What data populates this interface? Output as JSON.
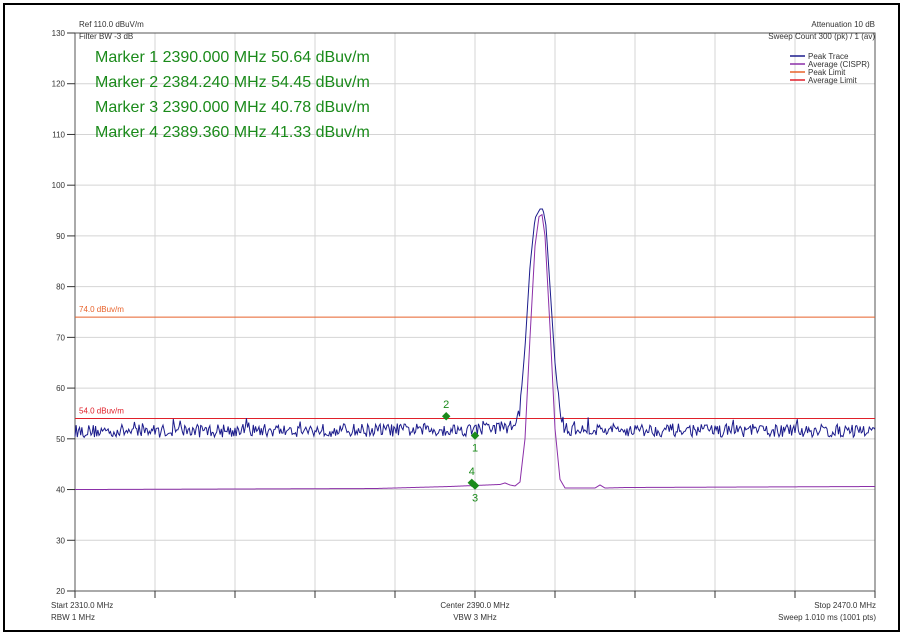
{
  "header": {
    "ref_level": "Ref 110.0 dBuV/m",
    "filter_bw": "Filter BW -3 dB",
    "attenuation": "Attenuation 10 dB",
    "sweep_count": "Sweep Count 300 (pk) / 1 (av)"
  },
  "footer": {
    "start": "Start 2310.0 MHz",
    "rbw": "RBW 1 MHz",
    "center": "Center 2390.0 MHz",
    "vbw": "VBW 3 MHz",
    "stop": "Stop 2470.0 MHz",
    "sweep": "Sweep 1.010 ms (1001 pts)"
  },
  "marker_readouts": [
    "Marker 1 2390.000 MHz 50.64 dBuv/m",
    "Marker 2 2384.240 MHz 54.45 dBuv/m",
    "Marker 3 2390.000 MHz 40.78 dBuv/m",
    "Marker 4 2389.360 MHz 41.33 dBuv/m"
  ],
  "colors": {
    "peak_trace": "#1c1c8c",
    "average_trace": "#8b2fa8",
    "peak_limit": "#e8622a",
    "average_limit": "#e0202a",
    "marker": "#1a8a1a",
    "grid": "#d4d4d4",
    "axis": "#333333"
  },
  "chart_data": {
    "type": "line",
    "x_unit": "MHz",
    "y_unit": "dBuV/m",
    "xlim": [
      2310,
      2470
    ],
    "ylim": [
      20,
      130
    ],
    "y_ticks": [
      20,
      30,
      40,
      50,
      60,
      70,
      80,
      90,
      100,
      110,
      120,
      130
    ],
    "x_grid_divisions": 10,
    "grid": true,
    "legend_position": "top-right",
    "legend": [
      "Peak Trace",
      "Average (CISPR)",
      "Peak Limit",
      "Average Limit"
    ],
    "limit_lines": [
      {
        "name": "Peak Limit",
        "value": 74.0,
        "label": "74.0 dBuv/m"
      },
      {
        "name": "Average Limit",
        "value": 54.0,
        "label": "54.0 dBuv/m"
      }
    ],
    "series": [
      {
        "name": "Peak Trace",
        "noise_floor": 51.5,
        "noise_amplitude": 1.3,
        "x": [
          2310,
          2390,
          2398,
          2399,
          2400,
          2401,
          2402,
          2403,
          2403.6,
          2404.2,
          2405,
          2406,
          2407,
          2408,
          2470
        ],
        "y": [
          51.5,
          51.8,
          52.5,
          56,
          68,
          84,
          93.5,
          95.3,
          95.3,
          92,
          80,
          65,
          55,
          51.8,
          51.5
        ]
      },
      {
        "name": "Average (CISPR)",
        "x": [
          2310,
          2370,
          2385,
          2390,
          2395,
          2396,
          2397,
          2398,
          2399,
          2400,
          2401,
          2402,
          2402.8,
          2403.4,
          2404,
          2405,
          2406,
          2407,
          2408,
          2414,
          2415,
          2416,
          2420,
          2470
        ],
        "y": [
          40.0,
          40.2,
          40.6,
          40.8,
          41.0,
          41.3,
          40.9,
          40.7,
          41.5,
          50,
          70,
          88,
          93.8,
          94.2,
          90,
          72,
          52,
          42,
          40.3,
          40.3,
          40.9,
          40.3,
          40.4,
          40.6
        ]
      }
    ],
    "markers": [
      {
        "label": "1",
        "x": 2390.0,
        "y": 50.64
      },
      {
        "label": "2",
        "x": 2384.24,
        "y": 54.45
      },
      {
        "label": "3",
        "x": 2390.0,
        "y": 40.78
      },
      {
        "label": "4",
        "x": 2389.36,
        "y": 41.33
      }
    ]
  }
}
